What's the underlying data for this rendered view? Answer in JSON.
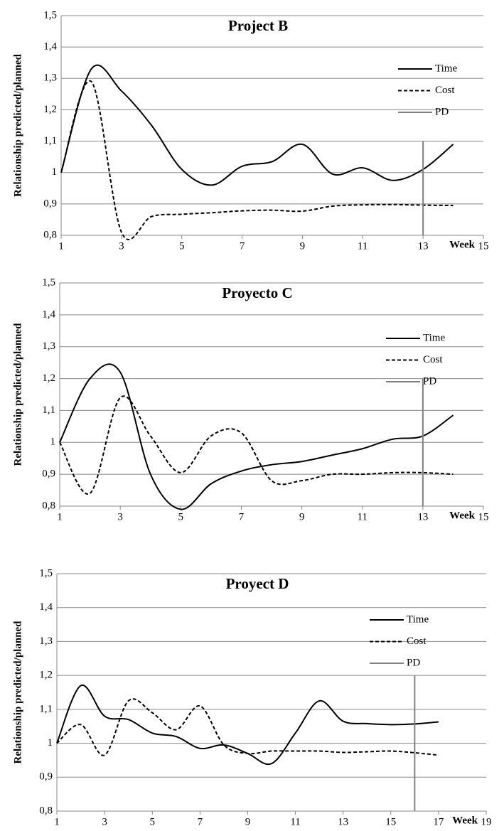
{
  "chart_data": [
    {
      "type": "line",
      "title": "Project B",
      "xlabel": "Week",
      "ylabel": "Relationship predicted/planned",
      "x": [
        1,
        2,
        3,
        4,
        5,
        6,
        7,
        8,
        9,
        10,
        11,
        12,
        13,
        14
      ],
      "series": [
        {
          "name": "Time",
          "color": "#000000",
          "style": "solid",
          "values": [
            1.0,
            1.33,
            1.26,
            1.15,
            1.01,
            0.96,
            1.02,
            1.035,
            1.09,
            0.995,
            1.015,
            0.975,
            1.01,
            1.09
          ]
        },
        {
          "name": "Cost",
          "color": "#000000",
          "style": "dashed",
          "values": [
            1.0,
            1.29,
            0.81,
            0.86,
            0.867,
            0.872,
            0.878,
            0.88,
            0.877,
            0.893,
            0.897,
            0.898,
            0.896,
            0.895
          ]
        },
        {
          "name": "PD",
          "color": "#808080",
          "style": "solid",
          "x": [
            13,
            13
          ],
          "values": [
            0.8,
            1.1
          ]
        }
      ],
      "xlim": [
        1,
        15
      ],
      "xticks": [
        1,
        3,
        5,
        7,
        9,
        11,
        13,
        15
      ],
      "ylim": [
        0.8,
        1.5
      ],
      "yticks": [
        {
          "value": 0.8,
          "label": "0,8"
        },
        {
          "value": 0.9,
          "label": "0,9"
        },
        1,
        {
          "value": 1.1,
          "label": "1,1"
        },
        {
          "value": 1.2,
          "label": "1,2"
        },
        {
          "value": 1.3,
          "label": "1,3"
        },
        {
          "value": 1.4,
          "label": "1,4"
        },
        {
          "value": 1.5,
          "label": "1,5"
        }
      ],
      "grid": true
    },
    {
      "type": "line",
      "title": "Proyecto C",
      "xlabel": "Week",
      "ylabel": "Relationship predicted/planned",
      "x": [
        1,
        2,
        3,
        4,
        5,
        6,
        7,
        8,
        9,
        10,
        11,
        12,
        13,
        14
      ],
      "series": [
        {
          "name": "Time",
          "color": "#000000",
          "style": "solid",
          "values": [
            1.0,
            1.2,
            1.22,
            0.9,
            0.79,
            0.87,
            0.91,
            0.93,
            0.94,
            0.96,
            0.98,
            1.01,
            1.02,
            1.085
          ]
        },
        {
          "name": "Cost",
          "color": "#000000",
          "style": "dashed",
          "values": [
            1.0,
            0.84,
            1.14,
            1.02,
            0.905,
            1.02,
            1.03,
            0.88,
            0.88,
            0.9,
            0.9,
            0.905,
            0.905,
            0.9
          ]
        },
        {
          "name": "PD",
          "color": "#808080",
          "style": "solid",
          "x": [
            13,
            13
          ],
          "values": [
            0.8,
            1.2
          ]
        }
      ],
      "xlim": [
        1,
        15
      ],
      "xticks": [
        1,
        3,
        5,
        7,
        9,
        11,
        13,
        15
      ],
      "ylim": [
        0.8,
        1.5
      ],
      "yticks": [
        {
          "value": 0.8,
          "label": "0,8"
        },
        {
          "value": 0.9,
          "label": "0,9"
        },
        1,
        {
          "value": 1.1,
          "label": "1,1"
        },
        {
          "value": 1.2,
          "label": "1,2"
        },
        {
          "value": 1.3,
          "label": "1,3"
        },
        {
          "value": 1.4,
          "label": "1,4"
        },
        {
          "value": 1.5,
          "label": "1,5"
        }
      ],
      "grid": true
    },
    {
      "type": "line",
      "title": "Proyect D",
      "xlabel": "Week",
      "ylabel": "Relationship predicted/planned",
      "x": [
        1,
        2,
        3,
        4,
        5,
        6,
        7,
        8,
        9,
        10,
        11,
        12,
        13,
        14,
        15,
        16,
        17
      ],
      "series": [
        {
          "name": "Time",
          "color": "#000000",
          "style": "solid",
          "values": [
            1.0,
            1.17,
            1.08,
            1.07,
            1.03,
            1.02,
            0.985,
            0.995,
            0.97,
            0.94,
            1.03,
            1.125,
            1.065,
            1.058,
            1.055,
            1.057,
            1.063
          ]
        },
        {
          "name": "Cost",
          "color": "#000000",
          "style": "dashed",
          "values": [
            1.0,
            1.055,
            0.965,
            1.125,
            1.09,
            1.04,
            1.11,
            0.995,
            0.97,
            0.977,
            0.977,
            0.977,
            0.973,
            0.975,
            0.977,
            0.972,
            0.965
          ]
        },
        {
          "name": "PD",
          "color": "#808080",
          "style": "solid",
          "x": [
            16,
            16
          ],
          "values": [
            0.8,
            1.2
          ]
        }
      ],
      "xlim": [
        1,
        19
      ],
      "xticks": [
        1,
        3,
        5,
        7,
        9,
        11,
        13,
        15,
        17,
        19
      ],
      "ylim": [
        0.8,
        1.5
      ],
      "yticks": [
        {
          "value": 0.8,
          "label": "0,8"
        },
        {
          "value": 0.9,
          "label": "0,9"
        },
        1,
        {
          "value": 1.1,
          "label": "1,1"
        },
        {
          "value": 1.2,
          "label": "1,2"
        },
        {
          "value": 1.3,
          "label": "1,3"
        },
        {
          "value": 1.4,
          "label": "1,4"
        },
        {
          "value": 1.5,
          "label": "1,5"
        }
      ],
      "grid": true
    }
  ]
}
